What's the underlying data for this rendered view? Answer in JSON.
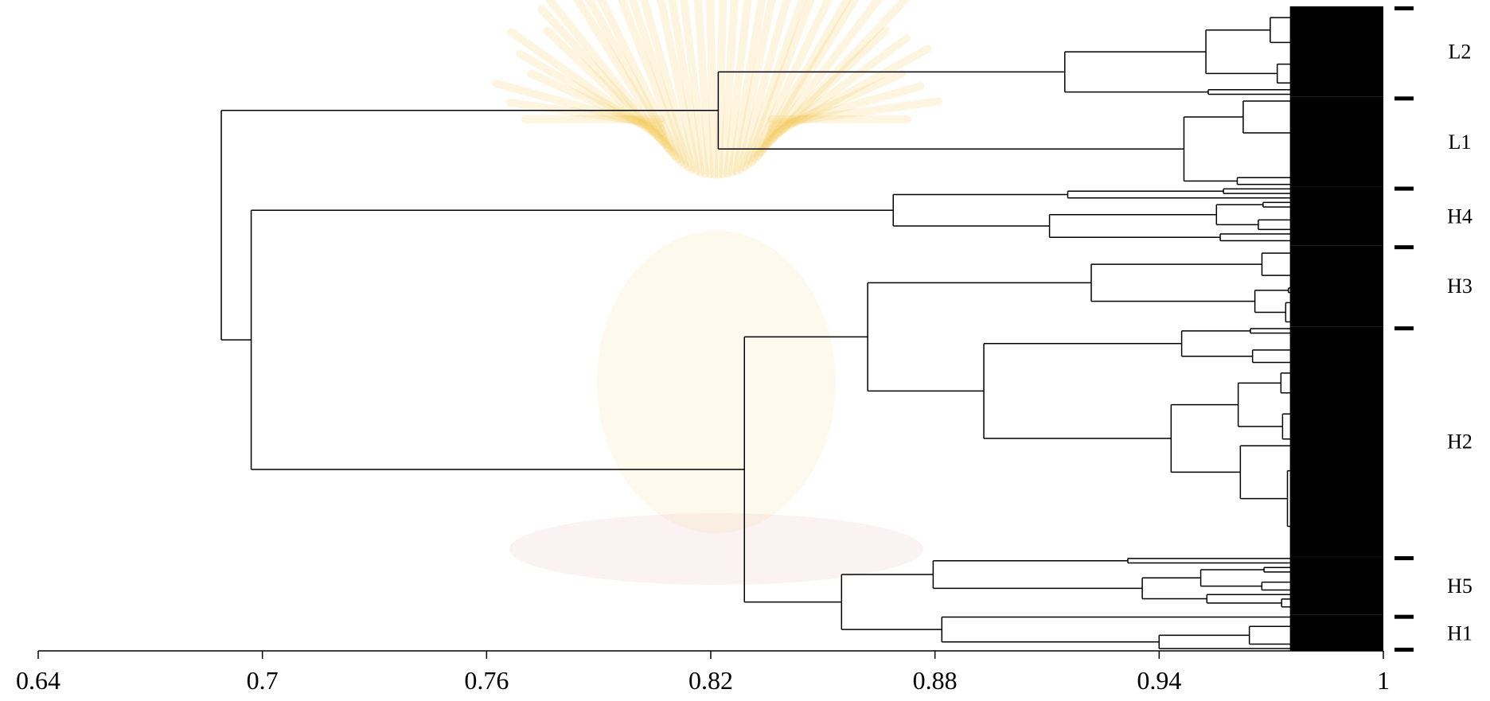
{
  "figure": {
    "kind": "dendrogram",
    "colors": {
      "line": "#000000",
      "watermark": "#f2c94c",
      "background": "#ffffff"
    },
    "watermark_icon": "university-emblem-icon"
  },
  "chart_data": {
    "type": "dendrogram",
    "xlim": [
      0.64,
      1.0
    ],
    "x_ticks": [
      0.64,
      0.7,
      0.76,
      0.82,
      0.88,
      0.94,
      1.0
    ],
    "x_tick_labels": [
      "0.64",
      "0.7",
      "0.76",
      "0.82",
      "0.88",
      "0.94",
      "1"
    ],
    "xlabel": "",
    "clusters": [
      {
        "label": "L2",
        "order": 1,
        "leaves": 20
      },
      {
        "label": "L1",
        "order": 2,
        "leaves": 20
      },
      {
        "label": "H4",
        "order": 3,
        "leaves": 13
      },
      {
        "label": "H3",
        "order": 4,
        "leaves": 18
      },
      {
        "label": "H2",
        "order": 5,
        "leaves": 51
      },
      {
        "label": "H5",
        "order": 6,
        "leaves": 13
      },
      {
        "label": "H1",
        "order": 7,
        "leaves": 8
      }
    ],
    "merges": [
      {
        "members": [
          "L2",
          "L1"
        ],
        "similarity": 0.822
      },
      {
        "members": [
          "H3",
          "H2"
        ],
        "similarity": 0.862
      },
      {
        "members": [
          "H5",
          "H1"
        ],
        "similarity": 0.855
      },
      {
        "members": [
          "H3+H2",
          "H5+H1"
        ],
        "similarity": 0.829
      },
      {
        "members": [
          "H4",
          "H3+H2+H5+H1"
        ],
        "similarity": 0.697
      },
      {
        "members": [
          "L2+L1",
          "H4+H3+H2+H5+H1"
        ],
        "similarity": 0.689
      }
    ],
    "cluster_inner_merge": [
      {
        "label": "L2",
        "similarity": 0.912
      },
      {
        "label": "L1",
        "similarity": 0.945
      },
      {
        "label": "H4",
        "similarity": 0.865
      },
      {
        "label": "H3",
        "similarity": 0.92
      },
      {
        "label": "H2",
        "similarity": 0.885
      },
      {
        "label": "H5",
        "similarity": 0.868
      },
      {
        "label": "H1",
        "similarity": 0.88
      }
    ]
  }
}
